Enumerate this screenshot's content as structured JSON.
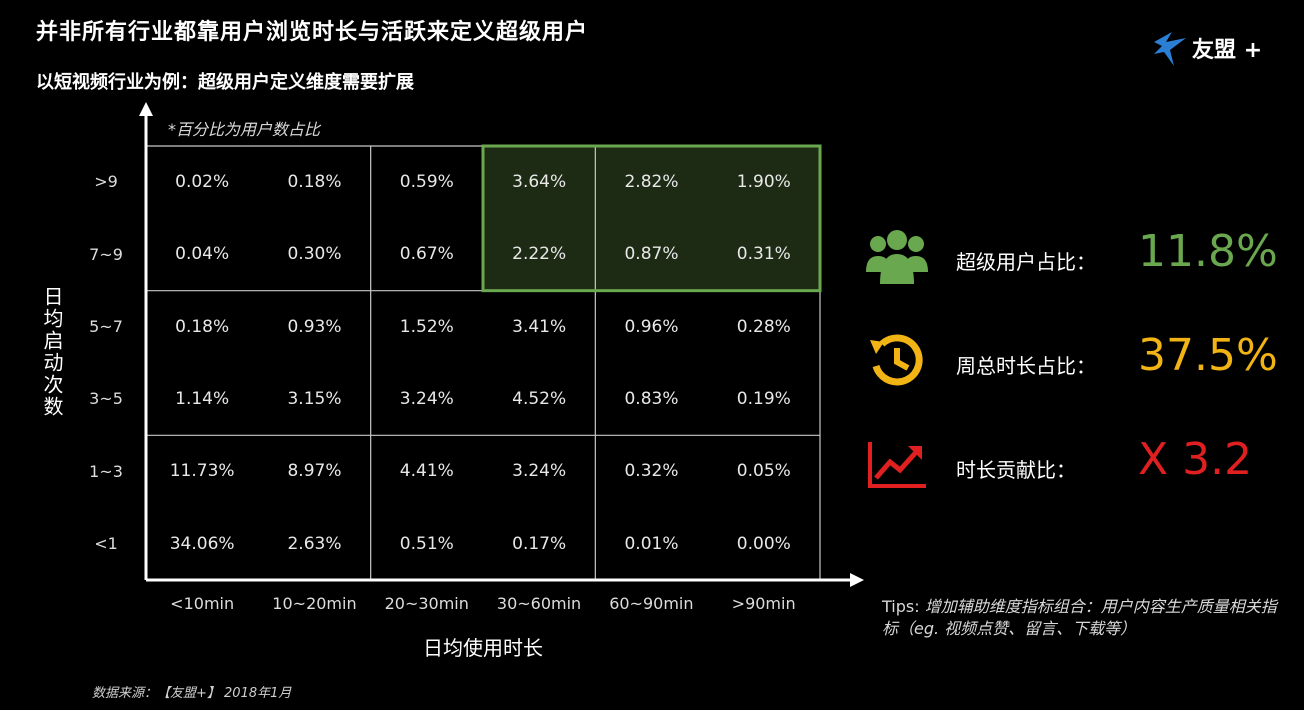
{
  "header": {
    "title": "并非所有行业都靠用户浏览时长与活跃来定义超级用户",
    "subtitle": "以短视频行业为例：超级用户定义维度需要扩展"
  },
  "logo": {
    "text": "友盟",
    "plus": "+",
    "icon": "swift-bird-icon",
    "color": "#2a7fd4"
  },
  "note": "*百分比为用户数占比",
  "chart_data": {
    "type": "heatmap",
    "xlabel": "日均使用时长",
    "ylabel": "日均启动次数",
    "x_categories": [
      "<10min",
      "10~20min",
      "20~30min",
      "30~60min",
      "60~90min",
      ">90min"
    ],
    "y_categories": [
      ">9",
      "7~9",
      "5~7",
      "3~5",
      "1~3",
      "<1"
    ],
    "cells": [
      [
        "0.02%",
        "0.18%",
        "0.59%",
        "3.64%",
        "2.82%",
        "1.90%"
      ],
      [
        "0.04%",
        "0.30%",
        "0.67%",
        "2.22%",
        "0.87%",
        "0.31%"
      ],
      [
        "0.18%",
        "0.93%",
        "1.52%",
        "3.41%",
        "0.96%",
        "0.28%"
      ],
      [
        "1.14%",
        "3.15%",
        "3.24%",
        "4.52%",
        "0.83%",
        "0.19%"
      ],
      [
        "11.73%",
        "8.97%",
        "4.41%",
        "3.24%",
        "0.32%",
        "0.05%"
      ],
      [
        "34.06%",
        "2.63%",
        "0.51%",
        "0.17%",
        "0.01%",
        "0.00%"
      ]
    ],
    "highlight": {
      "rows": [
        ">9",
        "7~9"
      ],
      "cols": [
        "30~60min",
        "60~90min",
        ">90min"
      ],
      "border_color": "#6aa84f",
      "fill_color": "#1d2b15"
    },
    "grid_color": "#c8c8c8"
  },
  "stats": [
    {
      "icon": "users-group-icon",
      "label": "超级用户占比：",
      "value": "11.8%",
      "color": "#6aa84f"
    },
    {
      "icon": "clock-history-icon",
      "label": "周总时长占比：",
      "value": "37.5%",
      "color": "#f2b315"
    },
    {
      "icon": "trend-up-chart-icon",
      "label": "时长贡献比：",
      "value": "X 3.2",
      "color": "#e02020"
    }
  ],
  "tips": {
    "head": "Tips: ",
    "body": "增加辅助维度指标组合：用户内容生产质量相关指标（eg. 视频点赞、留言、下载等）"
  },
  "source": "数据来源：【友盟+】 2018年1月"
}
